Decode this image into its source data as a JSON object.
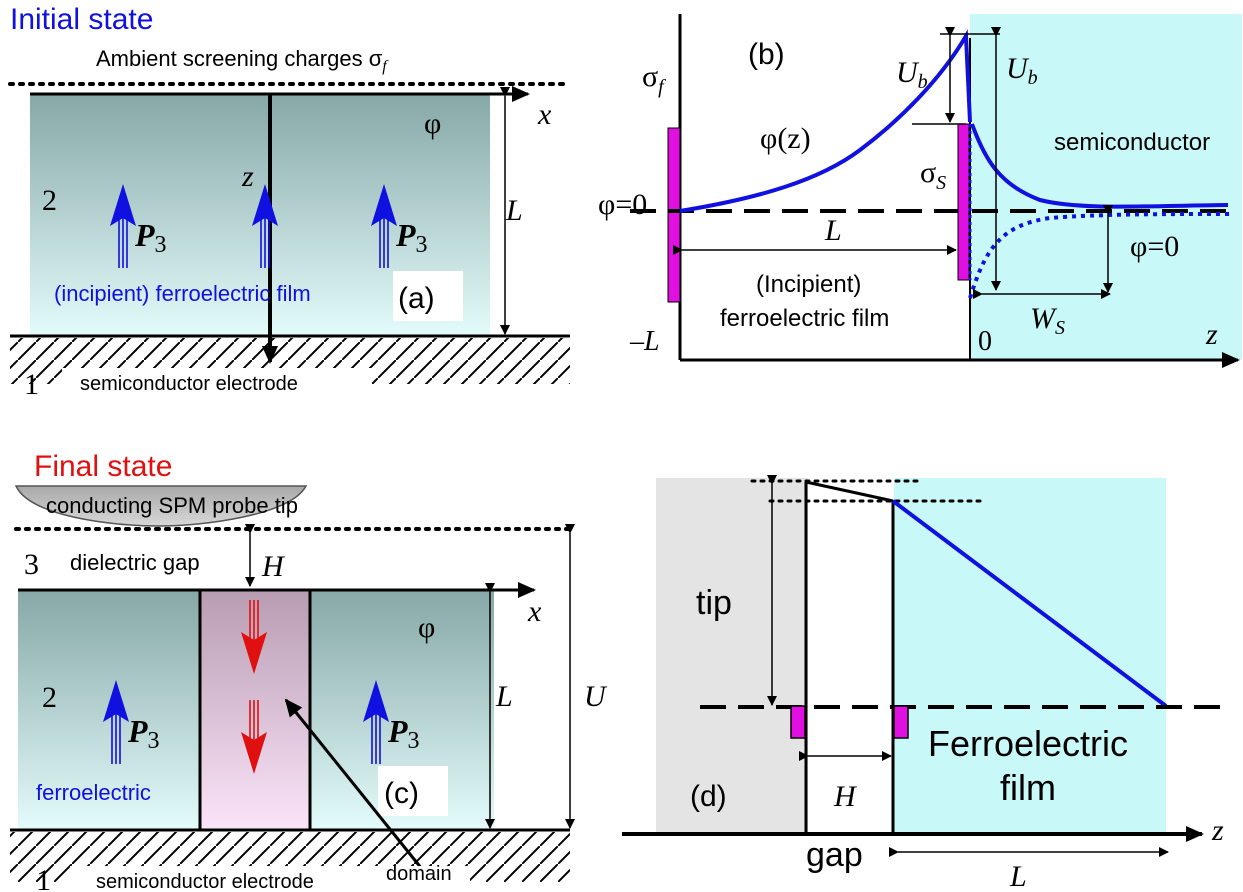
{
  "panel_a": {
    "title": "Initial state",
    "ambient_label": "Ambient screening charges σ",
    "ambient_sub": "f",
    "x_axis": "x",
    "z_axis": "z",
    "phi": "φ",
    "L": "L",
    "region_2": "2",
    "region_1": "1",
    "polarization": "P",
    "polarization_sub": "3",
    "film_label": "(incipient) ferroelectric film",
    "panel_label": "(a)",
    "electrode_label": "semiconductor electrode"
  },
  "panel_b": {
    "panel_label": "(b)",
    "sigma_f": "σ",
    "sigma_f_sub": "f",
    "phi_z": "φ(z)",
    "phi_zero_left": "φ=0",
    "U_b_left": "U",
    "U_b_left_sub": "b",
    "U_b_right": "U",
    "U_b_right_sub": "b",
    "semiconductor": "semiconductor",
    "sigma_S": "σ",
    "sigma_S_sub": "S",
    "L": "L",
    "film_line1": "(Incipient)",
    "film_line2": "ferroelectric film",
    "phi_zero_right": "φ=0",
    "W_S": "W",
    "W_S_sub": "S",
    "minus_L": "–L",
    "zero": "0",
    "z_axis": "z"
  },
  "panel_c": {
    "title": "Final state",
    "tip_label": "conducting SPM probe tip",
    "region_3": "3",
    "gap_label": "dielectric gap",
    "H": "H",
    "x_axis": "x",
    "phi": "φ",
    "region_2": "2",
    "region_1": "1",
    "polarization": "P",
    "polarization_sub": "3",
    "L": "L",
    "U": "U",
    "ferroelectric": "ferroelectric",
    "panel_label": "(c)",
    "electrode_label": "semiconductor electrode",
    "domain_label": "domain"
  },
  "panel_d": {
    "tip": "tip",
    "panel_label": "(d)",
    "H": "H",
    "film_line1": "Ferroelectric",
    "film_line2": "film",
    "gap": "gap",
    "L": "L",
    "z_axis": "z"
  },
  "colors": {
    "blue": "#1010e0",
    "red": "#e01010",
    "magenta": "#e010e0",
    "cyan": "#c8f8f8",
    "gray": "#e0e0e0",
    "pink": "#f4d8f0"
  }
}
